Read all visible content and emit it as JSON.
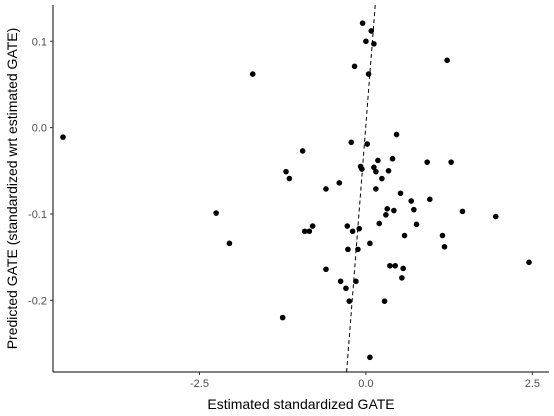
{
  "chart_data": {
    "type": "scatter",
    "title": "",
    "xlabel": "Estimated standardized GATE",
    "ylabel": "Predicted GATE (standardized wrt estimated GATE)",
    "xlim": [
      -4.7,
      2.75
    ],
    "ylim": [
      -0.283,
      0.142
    ],
    "x_ticks": [
      -2.5,
      0.0,
      2.5
    ],
    "x_tick_labels": [
      "-2.5",
      "0.0",
      "2.5"
    ],
    "y_ticks": [
      0.1,
      0.0,
      -0.1,
      -0.2
    ],
    "y_tick_labels": [
      "0.1",
      "0.0",
      "-0.1",
      "-0.2"
    ],
    "grid": false,
    "legend": "none",
    "point_color": "#000000",
    "reference_line": {
      "style": "dashed",
      "color": "#000000",
      "points": [
        [
          -0.29,
          -0.283
        ],
        [
          0.14,
          0.142
        ]
      ]
    },
    "points": [
      {
        "x": -4.55,
        "y": -0.011
      },
      {
        "x": -2.25,
        "y": -0.099
      },
      {
        "x": -2.05,
        "y": -0.134
      },
      {
        "x": -1.7,
        "y": 0.062
      },
      {
        "x": -1.25,
        "y": -0.22
      },
      {
        "x": -1.2,
        "y": -0.051
      },
      {
        "x": -1.15,
        "y": -0.059
      },
      {
        "x": -0.95,
        "y": -0.027
      },
      {
        "x": -0.92,
        "y": -0.12
      },
      {
        "x": -0.85,
        "y": -0.12
      },
      {
        "x": -0.8,
        "y": -0.114
      },
      {
        "x": -0.6,
        "y": -0.071
      },
      {
        "x": -0.6,
        "y": -0.164
      },
      {
        "x": -0.4,
        "y": -0.064
      },
      {
        "x": -0.38,
        "y": -0.178
      },
      {
        "x": -0.3,
        "y": -0.186
      },
      {
        "x": -0.28,
        "y": -0.114
      },
      {
        "x": -0.27,
        "y": -0.141
      },
      {
        "x": -0.25,
        "y": -0.201
      },
      {
        "x": -0.22,
        "y": -0.017
      },
      {
        "x": -0.2,
        "y": -0.12
      },
      {
        "x": -0.17,
        "y": 0.071
      },
      {
        "x": -0.15,
        "y": -0.178
      },
      {
        "x": -0.12,
        "y": -0.141
      },
      {
        "x": -0.1,
        "y": -0.117
      },
      {
        "x": -0.08,
        "y": -0.045
      },
      {
        "x": -0.06,
        "y": -0.048
      },
      {
        "x": -0.05,
        "y": 0.121
      },
      {
        "x": 0.0,
        "y": 0.1
      },
      {
        "x": 0.02,
        "y": -0.019
      },
      {
        "x": 0.04,
        "y": 0.062
      },
      {
        "x": 0.06,
        "y": -0.134
      },
      {
        "x": 0.06,
        "y": -0.266
      },
      {
        "x": 0.08,
        "y": 0.112
      },
      {
        "x": 0.12,
        "y": 0.097
      },
      {
        "x": 0.12,
        "y": -0.046
      },
      {
        "x": 0.15,
        "y": -0.051
      },
      {
        "x": 0.15,
        "y": -0.071
      },
      {
        "x": 0.18,
        "y": -0.038
      },
      {
        "x": 0.2,
        "y": -0.111
      },
      {
        "x": 0.24,
        "y": -0.059
      },
      {
        "x": 0.28,
        "y": -0.201
      },
      {
        "x": 0.3,
        "y": -0.101
      },
      {
        "x": 0.32,
        "y": -0.094
      },
      {
        "x": 0.34,
        "y": -0.05
      },
      {
        "x": 0.36,
        "y": -0.16
      },
      {
        "x": 0.4,
        "y": -0.036
      },
      {
        "x": 0.42,
        "y": -0.096
      },
      {
        "x": 0.44,
        "y": -0.16
      },
      {
        "x": 0.46,
        "y": -0.008
      },
      {
        "x": 0.52,
        "y": -0.076
      },
      {
        "x": 0.54,
        "y": -0.174
      },
      {
        "x": 0.56,
        "y": -0.163
      },
      {
        "x": 0.58,
        "y": -0.125
      },
      {
        "x": 0.68,
        "y": -0.085
      },
      {
        "x": 0.72,
        "y": -0.095
      },
      {
        "x": 0.76,
        "y": -0.112
      },
      {
        "x": 0.92,
        "y": -0.04
      },
      {
        "x": 0.96,
        "y": -0.083
      },
      {
        "x": 1.15,
        "y": -0.125
      },
      {
        "x": 1.18,
        "y": -0.138
      },
      {
        "x": 1.22,
        "y": 0.078
      },
      {
        "x": 1.28,
        "y": -0.04
      },
      {
        "x": 1.45,
        "y": -0.097
      },
      {
        "x": 1.95,
        "y": -0.103
      },
      {
        "x": 2.45,
        "y": -0.156
      }
    ]
  }
}
